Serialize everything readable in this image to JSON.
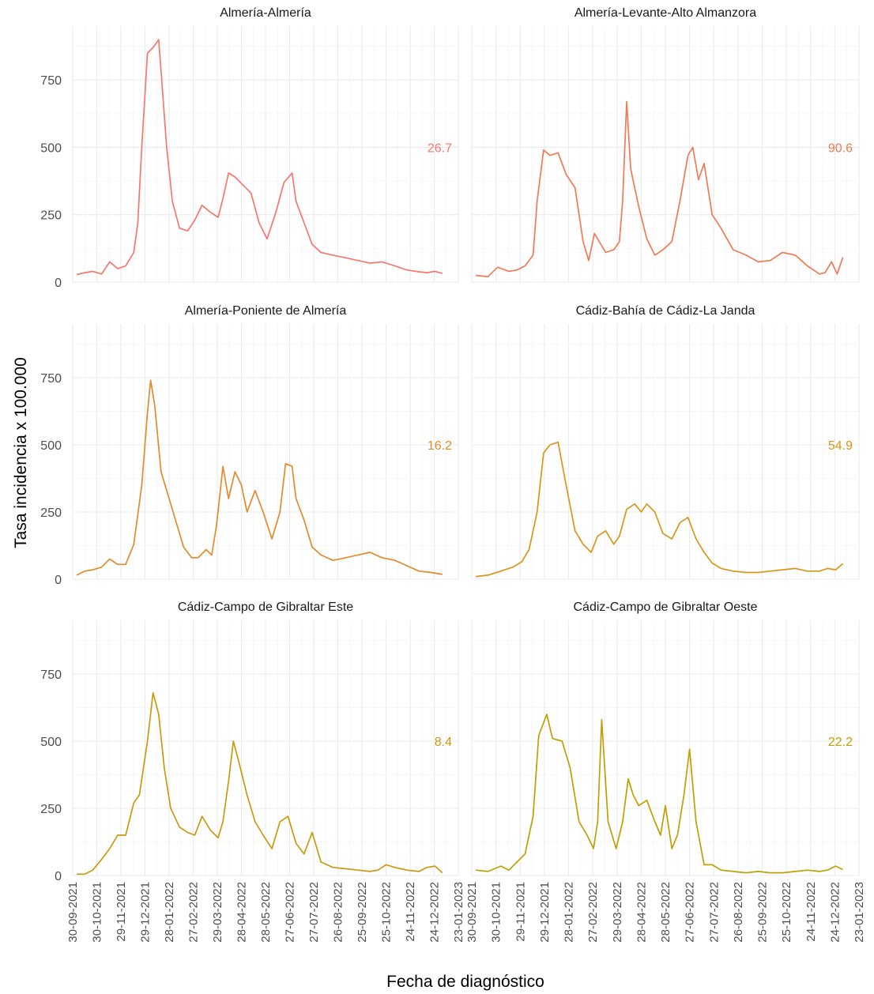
{
  "chart_data": {
    "type": "line",
    "xlabel": "Fecha de diagnóstico",
    "ylabel": "Tasa incidencia x 100.000",
    "x_ticks": [
      "30-09-2021",
      "30-10-2021",
      "29-11-2021",
      "29-12-2021",
      "28-01-2022",
      "27-02-2022",
      "29-03-2022",
      "28-04-2022",
      "28-05-2022",
      "27-06-2022",
      "27-07-2022",
      "26-08-2022",
      "25-09-2022",
      "25-10-2022",
      "24-11-2022",
      "24-12-2022",
      "23-01-2023"
    ],
    "y_ticks": [
      0,
      250,
      500,
      750
    ],
    "ylim": [
      0,
      950
    ],
    "grid": true,
    "panels": [
      {
        "title": "Almería-Almería",
        "annotation": "26.7",
        "color": "#F8766D",
        "x": [
          "2021-10-05",
          "2021-10-15",
          "2021-10-25",
          "2021-11-05",
          "2021-11-15",
          "2021-11-25",
          "2021-12-05",
          "2021-12-15",
          "2021-12-20",
          "2021-12-25",
          "2022-01-01",
          "2022-01-08",
          "2022-01-15",
          "2022-01-20",
          "2022-01-25",
          "2022-02-01",
          "2022-02-10",
          "2022-02-20",
          "2022-03-01",
          "2022-03-10",
          "2022-03-20",
          "2022-03-30",
          "2022-04-05",
          "2022-04-12",
          "2022-04-20",
          "2022-04-30",
          "2022-05-10",
          "2022-05-20",
          "2022-05-30",
          "2022-06-10",
          "2022-06-20",
          "2022-06-30",
          "2022-07-05",
          "2022-07-15",
          "2022-07-25",
          "2022-08-05",
          "2022-08-20",
          "2022-09-05",
          "2022-09-20",
          "2022-10-05",
          "2022-10-20",
          "2022-11-05",
          "2022-11-20",
          "2022-12-05",
          "2022-12-15",
          "2022-12-25",
          "2023-01-03"
        ],
        "y": [
          28,
          35,
          40,
          30,
          75,
          50,
          60,
          110,
          220,
          500,
          850,
          870,
          900,
          700,
          500,
          300,
          200,
          190,
          230,
          285,
          260,
          240,
          310,
          405,
          390,
          360,
          330,
          220,
          160,
          260,
          370,
          405,
          300,
          220,
          140,
          110,
          100,
          90,
          80,
          70,
          75,
          60,
          45,
          38,
          35,
          40,
          32
        ]
      },
      {
        "title": "Almería-Levante-Alto Almanzora",
        "annotation": "90.6",
        "color": "#F07A56",
        "x": [
          "2021-10-05",
          "2021-10-20",
          "2021-11-01",
          "2021-11-15",
          "2021-11-25",
          "2021-12-05",
          "2021-12-15",
          "2021-12-20",
          "2021-12-28",
          "2022-01-05",
          "2022-01-15",
          "2022-01-25",
          "2022-02-05",
          "2022-02-15",
          "2022-02-22",
          "2022-03-01",
          "2022-03-15",
          "2022-03-25",
          "2022-04-01",
          "2022-04-05",
          "2022-04-10",
          "2022-04-15",
          "2022-04-20",
          "2022-04-25",
          "2022-05-05",
          "2022-05-15",
          "2022-05-25",
          "2022-06-05",
          "2022-06-15",
          "2022-06-25",
          "2022-07-01",
          "2022-07-08",
          "2022-07-15",
          "2022-07-25",
          "2022-08-05",
          "2022-08-20",
          "2022-09-05",
          "2022-09-20",
          "2022-10-05",
          "2022-10-20",
          "2022-11-05",
          "2022-11-20",
          "2022-12-05",
          "2022-12-12",
          "2022-12-20",
          "2022-12-27",
          "2023-01-03"
        ],
        "y": [
          25,
          20,
          55,
          40,
          45,
          60,
          100,
          300,
          490,
          470,
          480,
          400,
          350,
          150,
          80,
          180,
          110,
          120,
          150,
          300,
          670,
          420,
          350,
          280,
          160,
          100,
          120,
          150,
          300,
          470,
          500,
          380,
          440,
          250,
          200,
          120,
          100,
          75,
          80,
          110,
          100,
          60,
          30,
          35,
          75,
          30,
          92
        ]
      },
      {
        "title": "Almería-Poniente de Almería",
        "annotation": "16.2",
        "color": "#E58A2C",
        "x": [
          "2021-10-05",
          "2021-10-15",
          "2021-10-25",
          "2021-11-05",
          "2021-11-15",
          "2021-11-25",
          "2021-12-05",
          "2021-12-15",
          "2021-12-25",
          "2022-01-01",
          "2022-01-05",
          "2022-01-10",
          "2022-01-18",
          "2022-01-28",
          "2022-02-05",
          "2022-02-15",
          "2022-02-25",
          "2022-03-05",
          "2022-03-15",
          "2022-03-22",
          "2022-03-28",
          "2022-04-05",
          "2022-04-12",
          "2022-04-20",
          "2022-04-28",
          "2022-05-05",
          "2022-05-15",
          "2022-05-25",
          "2022-06-05",
          "2022-06-15",
          "2022-06-22",
          "2022-06-30",
          "2022-07-05",
          "2022-07-15",
          "2022-07-25",
          "2022-08-05",
          "2022-08-20",
          "2022-09-05",
          "2022-09-20",
          "2022-10-05",
          "2022-10-20",
          "2022-11-05",
          "2022-11-20",
          "2022-12-05",
          "2022-12-20",
          "2023-01-03"
        ],
        "y": [
          15,
          30,
          35,
          45,
          75,
          55,
          55,
          130,
          350,
          620,
          740,
          650,
          400,
          300,
          220,
          120,
          80,
          80,
          110,
          90,
          200,
          420,
          300,
          400,
          350,
          250,
          330,
          250,
          150,
          250,
          430,
          420,
          300,
          220,
          120,
          90,
          70,
          80,
          90,
          100,
          80,
          70,
          50,
          30,
          25,
          18
        ]
      },
      {
        "title": "Cádiz-Bahía de Cádiz-La Janda",
        "annotation": "54.9",
        "color": "#D99618",
        "x": [
          "2021-10-05",
          "2021-10-20",
          "2021-11-05",
          "2021-11-20",
          "2021-12-01",
          "2021-12-10",
          "2021-12-20",
          "2021-12-28",
          "2022-01-05",
          "2022-01-15",
          "2022-01-25",
          "2022-02-05",
          "2022-02-15",
          "2022-02-25",
          "2022-03-05",
          "2022-03-15",
          "2022-03-25",
          "2022-04-01",
          "2022-04-10",
          "2022-04-20",
          "2022-04-28",
          "2022-05-05",
          "2022-05-15",
          "2022-05-25",
          "2022-06-05",
          "2022-06-15",
          "2022-06-25",
          "2022-07-05",
          "2022-07-15",
          "2022-07-25",
          "2022-08-05",
          "2022-08-20",
          "2022-09-05",
          "2022-09-20",
          "2022-10-05",
          "2022-10-20",
          "2022-11-05",
          "2022-11-20",
          "2022-12-05",
          "2022-12-15",
          "2022-12-25",
          "2023-01-03"
        ],
        "y": [
          10,
          15,
          30,
          45,
          65,
          110,
          250,
          470,
          500,
          510,
          350,
          180,
          130,
          100,
          160,
          180,
          130,
          160,
          260,
          280,
          250,
          280,
          250,
          170,
          150,
          210,
          230,
          150,
          100,
          60,
          40,
          30,
          25,
          25,
          30,
          35,
          40,
          30,
          30,
          40,
          35,
          58
        ]
      },
      {
        "title": "Cádiz-Campo de Gibraltar Este",
        "annotation": "8.4",
        "color": "#C99A0E",
        "x": [
          "2021-10-05",
          "2021-10-15",
          "2021-10-25",
          "2021-11-05",
          "2021-11-15",
          "2021-11-25",
          "2021-12-05",
          "2021-12-15",
          "2021-12-22",
          "2022-01-01",
          "2022-01-08",
          "2022-01-15",
          "2022-01-22",
          "2022-01-30",
          "2022-02-10",
          "2022-02-20",
          "2022-03-01",
          "2022-03-10",
          "2022-03-20",
          "2022-03-30",
          "2022-04-05",
          "2022-04-12",
          "2022-04-18",
          "2022-04-25",
          "2022-05-05",
          "2022-05-15",
          "2022-05-25",
          "2022-06-05",
          "2022-06-15",
          "2022-06-25",
          "2022-07-05",
          "2022-07-15",
          "2022-07-25",
          "2022-08-05",
          "2022-08-20",
          "2022-09-05",
          "2022-09-20",
          "2022-10-05",
          "2022-10-15",
          "2022-10-25",
          "2022-11-05",
          "2022-11-20",
          "2022-12-05",
          "2022-12-15",
          "2022-12-25",
          "2023-01-03"
        ],
        "y": [
          5,
          5,
          20,
          60,
          100,
          150,
          150,
          270,
          300,
          500,
          680,
          600,
          400,
          250,
          180,
          160,
          150,
          220,
          170,
          140,
          200,
          350,
          500,
          420,
          300,
          200,
          150,
          100,
          200,
          220,
          120,
          80,
          160,
          50,
          30,
          25,
          20,
          15,
          20,
          40,
          30,
          20,
          15,
          30,
          35,
          10
        ]
      },
      {
        "title": "Cádiz-Campo de Gibraltar Oeste",
        "annotation": "22.2",
        "color": "#BFA004",
        "x": [
          "2021-10-05",
          "2021-10-20",
          "2021-11-05",
          "2021-11-15",
          "2021-11-25",
          "2021-12-05",
          "2021-12-15",
          "2021-12-22",
          "2022-01-01",
          "2022-01-08",
          "2022-01-20",
          "2022-01-30",
          "2022-02-10",
          "2022-02-20",
          "2022-02-28",
          "2022-03-05",
          "2022-03-10",
          "2022-03-18",
          "2022-03-28",
          "2022-04-05",
          "2022-04-12",
          "2022-04-18",
          "2022-04-25",
          "2022-05-05",
          "2022-05-15",
          "2022-05-22",
          "2022-05-28",
          "2022-06-05",
          "2022-06-12",
          "2022-06-20",
          "2022-06-27",
          "2022-07-05",
          "2022-07-15",
          "2022-07-25",
          "2022-08-05",
          "2022-08-20",
          "2022-09-05",
          "2022-09-20",
          "2022-10-05",
          "2022-10-20",
          "2022-11-05",
          "2022-11-20",
          "2022-12-05",
          "2022-12-15",
          "2022-12-25",
          "2023-01-03"
        ],
        "y": [
          20,
          15,
          35,
          20,
          50,
          80,
          220,
          520,
          600,
          510,
          500,
          400,
          200,
          150,
          100,
          200,
          580,
          200,
          100,
          200,
          360,
          300,
          260,
          280,
          200,
          150,
          260,
          100,
          150,
          300,
          470,
          200,
          40,
          40,
          20,
          15,
          10,
          15,
          10,
          10,
          15,
          20,
          15,
          20,
          35,
          22
        ]
      }
    ]
  }
}
